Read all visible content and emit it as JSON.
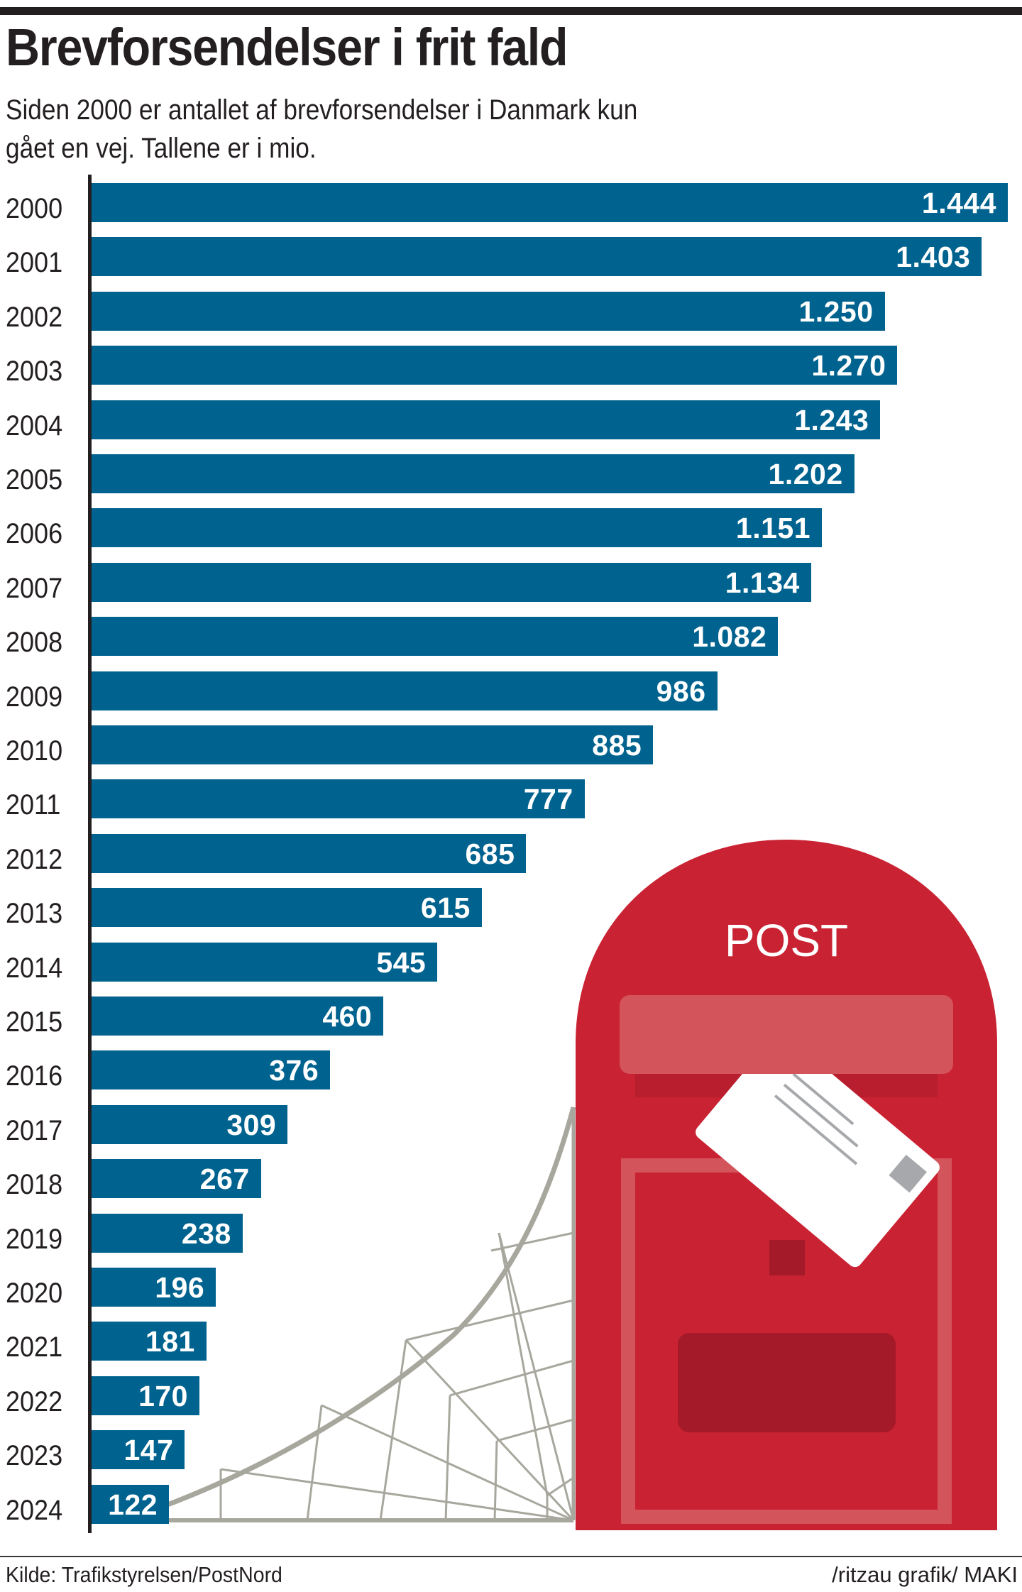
{
  "header": {
    "title": "Brevforsendelser i frit fald",
    "subtitle_line1": "Siden 2000 er antallet af brevforsendelser i Danmark kun",
    "subtitle_line2": "gået en vej. Tallene er i mio."
  },
  "illustration": {
    "mailbox_label": "POST",
    "colors": {
      "bar": "#00628e",
      "mailbox": "#c92232",
      "mailbox_light": "#d4545c",
      "mailbox_dark": "#a51a29",
      "web": "#a8a79e",
      "letter": "#ffffff",
      "stamp": "#a6a8ab"
    }
  },
  "footer": {
    "source": "Kilde: Trafikstyrelsen/PostNord",
    "credit": "/ritzau grafik/ MAKI"
  },
  "chart_data": {
    "type": "bar",
    "orientation": "horizontal",
    "title": "Brevforsendelser i frit fald",
    "subtitle": "Siden 2000 er antallet af brevforsendelser i Danmark kun gået en vej. Tallene er i mio.",
    "xlabel": "",
    "ylabel": "",
    "unit": "mio.",
    "categories": [
      "2000",
      "2001",
      "2002",
      "2003",
      "2004",
      "2005",
      "2006",
      "2007",
      "2008",
      "2009",
      "2010",
      "2011",
      "2012",
      "2013",
      "2014",
      "2015",
      "2016",
      "2017",
      "2018",
      "2019",
      "2020",
      "2021",
      "2022",
      "2023",
      "2024"
    ],
    "values": [
      1444,
      1403,
      1250,
      1270,
      1243,
      1202,
      1151,
      1134,
      1082,
      986,
      885,
      777,
      685,
      615,
      545,
      460,
      376,
      309,
      267,
      238,
      196,
      181,
      170,
      147,
      122
    ],
    "labels": [
      "1.444",
      "1.403",
      "1.250",
      "1.270",
      "1.243",
      "1.202",
      "1.151",
      "1.134",
      "1.082",
      "986",
      "885",
      "777",
      "685",
      "615",
      "545",
      "460",
      "376",
      "309",
      "267",
      "238",
      "196",
      "181",
      "170",
      "147",
      "122"
    ],
    "xlim": [
      0,
      1444
    ],
    "grid": false,
    "legend": null,
    "source": "Kilde: Trafikstyrelsen/PostNord"
  }
}
